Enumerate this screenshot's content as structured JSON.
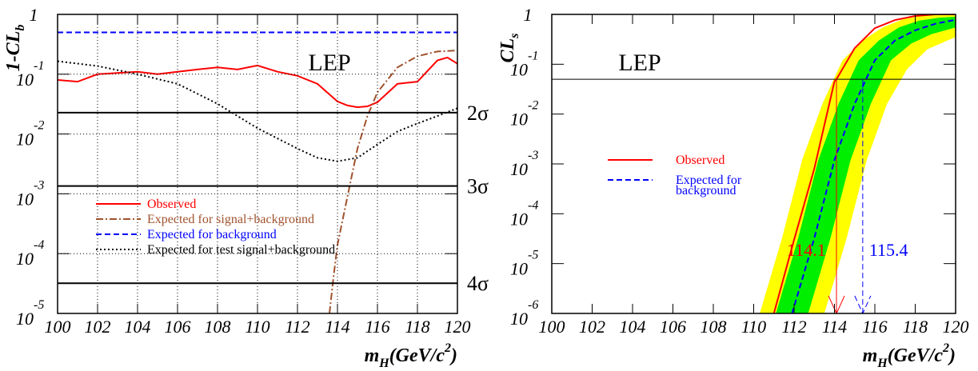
{
  "chart_data": [
    {
      "type": "line",
      "ylog": true,
      "grid": true,
      "legend": "lower left",
      "ylabel": [
        "1-CL",
        "b"
      ],
      "xlabel": [
        "m",
        "H",
        "(GeV/c",
        "2",
        ")"
      ],
      "xlim": [
        100,
        120
      ],
      "xticks": [
        100,
        102,
        104,
        106,
        108,
        110,
        112,
        114,
        116,
        118,
        120
      ],
      "ylim": [
        1e-05,
        1
      ],
      "yticks": [
        1,
        {
          "value": 0.1,
          "label": "10^-1"
        },
        {
          "value": 0.01,
          "label": "10^-2"
        },
        {
          "value": 0.001,
          "label": "10^-3"
        },
        {
          "value": 0.0001,
          "label": "10^-4"
        },
        {
          "value": 1e-05,
          "label": "10^-5"
        }
      ],
      "annotations": [
        {
          "text": "LEP"
        }
      ],
      "hlines": [
        {
          "value": 0.0228,
          "label": "2σ",
          "color": "#000000"
        },
        {
          "value": 0.00135,
          "label": "3σ",
          "color": "#000000"
        },
        {
          "value": 3.2e-05,
          "label": "4σ",
          "color": "#000000"
        }
      ],
      "series": [
        {
          "name": "Observed",
          "color": "#ff0000",
          "style": "solid",
          "x": [
            100,
            101,
            102,
            103,
            104,
            105,
            106,
            107,
            108,
            109,
            110,
            111,
            112,
            113,
            114,
            114.5,
            115,
            115.5,
            116,
            117,
            118,
            119,
            119.5,
            120
          ],
          "values": [
            0.08,
            0.075,
            0.1,
            0.105,
            0.11,
            0.1,
            0.11,
            0.12,
            0.13,
            0.12,
            0.14,
            0.11,
            0.094,
            0.069,
            0.035,
            0.03,
            0.028,
            0.029,
            0.034,
            0.069,
            0.075,
            0.17,
            0.19,
            0.15
          ]
        },
        {
          "name": "Expected for signal+background",
          "color": "#a0522d",
          "style": "dashdot",
          "x": [
            113.6,
            113.8,
            114,
            114.5,
            115,
            115.5,
            116,
            117,
            118,
            119,
            120
          ],
          "values": [
            1e-05,
            4e-05,
            0.00014,
            0.0009,
            0.0057,
            0.02,
            0.05,
            0.13,
            0.2,
            0.24,
            0.25
          ]
        },
        {
          "name": "Expected for background",
          "color": "#0000ff",
          "style": "dashed",
          "x": [
            100,
            120
          ],
          "values": [
            0.5,
            0.5
          ]
        },
        {
          "name": "Expected for test signal+background",
          "color": "#000000",
          "style": "dotted",
          "x": [
            100,
            102,
            104,
            106,
            108,
            110,
            112,
            113,
            114,
            115,
            116,
            117,
            118,
            119,
            120
          ],
          "values": [
            0.165,
            0.137,
            0.1,
            0.069,
            0.032,
            0.0125,
            0.0057,
            0.004,
            0.0035,
            0.004,
            0.0067,
            0.011,
            0.015,
            0.02,
            0.027
          ]
        }
      ]
    },
    {
      "type": "line",
      "ylog": true,
      "grid": false,
      "legend": "center left",
      "ylabel": [
        "CL",
        "s"
      ],
      "xlabel": [
        "m",
        "H",
        "(GeV/c",
        "2",
        ")"
      ],
      "xlim": [
        100,
        120
      ],
      "xticks": [
        100,
        102,
        104,
        106,
        108,
        110,
        112,
        114,
        116,
        118,
        120
      ],
      "ylim": [
        1e-06,
        1
      ],
      "yticks": [
        1,
        {
          "value": 0.1,
          "label": "10^-1"
        },
        {
          "value": 0.01,
          "label": "10^-2"
        },
        {
          "value": 0.001,
          "label": "10^-3"
        },
        {
          "value": 0.0001,
          "label": "10^-4"
        },
        {
          "value": 1e-05,
          "label": "10^-5"
        },
        {
          "value": 1e-06,
          "label": "10^-6"
        }
      ],
      "annotations": [
        {
          "text": "LEP"
        }
      ],
      "hlines": [
        {
          "value": 0.05,
          "color": "#000000"
        }
      ],
      "bands": [
        {
          "color": "#ffff00",
          "upper": {
            "x": [
              110.3,
              111.4,
              112.4,
              113.4,
              114.4,
              115.4,
              116.4,
              117.4,
              118.4,
              120
            ],
            "values": [
              1e-06,
              3.2e-05,
              0.0012,
              0.016,
              0.12,
              0.3,
              0.55,
              0.8,
              0.95,
              1
            ]
          },
          "lower": {
            "x": [
              113.5,
              114.6,
              115.6,
              116.6,
              117.6,
              118.6,
              119.6,
              120
            ],
            "values": [
              1e-06,
              3.2e-05,
              0.0012,
              0.016,
              0.08,
              0.2,
              0.3,
              0.35
            ]
          }
        },
        {
          "color": "#00ee00",
          "upper": {
            "x": [
              111.1,
              112.2,
              113.2,
              114.2,
              115.2,
              116.2,
              117.2,
              118.2,
              119.2,
              120
            ],
            "values": [
              1e-06,
              3.2e-05,
              0.0012,
              0.016,
              0.12,
              0.3,
              0.55,
              0.75,
              0.86,
              0.9
            ]
          },
          "lower": {
            "x": [
              112.7,
              113.8,
              114.8,
              115.8,
              116.8,
              117.8,
              118.8,
              119.8,
              120
            ],
            "values": [
              1e-06,
              3.2e-05,
              0.0012,
              0.016,
              0.12,
              0.26,
              0.4,
              0.52,
              0.55
            ]
          }
        }
      ],
      "limits": [
        {
          "value": 114.1,
          "color": "#ff0000",
          "style": "solid"
        },
        {
          "value": 115.4,
          "color": "#0000ff",
          "style": "dashed"
        }
      ],
      "series": [
        {
          "name": [
            "Observed"
          ],
          "color": "#ff0000",
          "style": "solid",
          "x": [
            111,
            112,
            113,
            114,
            114.1,
            115,
            116,
            117,
            118,
            119,
            120
          ],
          "values": [
            1e-06,
            3e-05,
            0.0008,
            0.045,
            0.05,
            0.21,
            0.53,
            0.77,
            0.93,
            1,
            1
          ]
        },
        {
          "name": [
            "Expected for",
            "background"
          ],
          "color": "#0000ff",
          "style": "dashed",
          "x": [
            111.9,
            113,
            114,
            115,
            116,
            117,
            118,
            119,
            120
          ],
          "values": [
            1e-06,
            3.2e-05,
            0.0012,
            0.016,
            0.12,
            0.3,
            0.48,
            0.65,
            0.78
          ]
        }
      ]
    }
  ]
}
